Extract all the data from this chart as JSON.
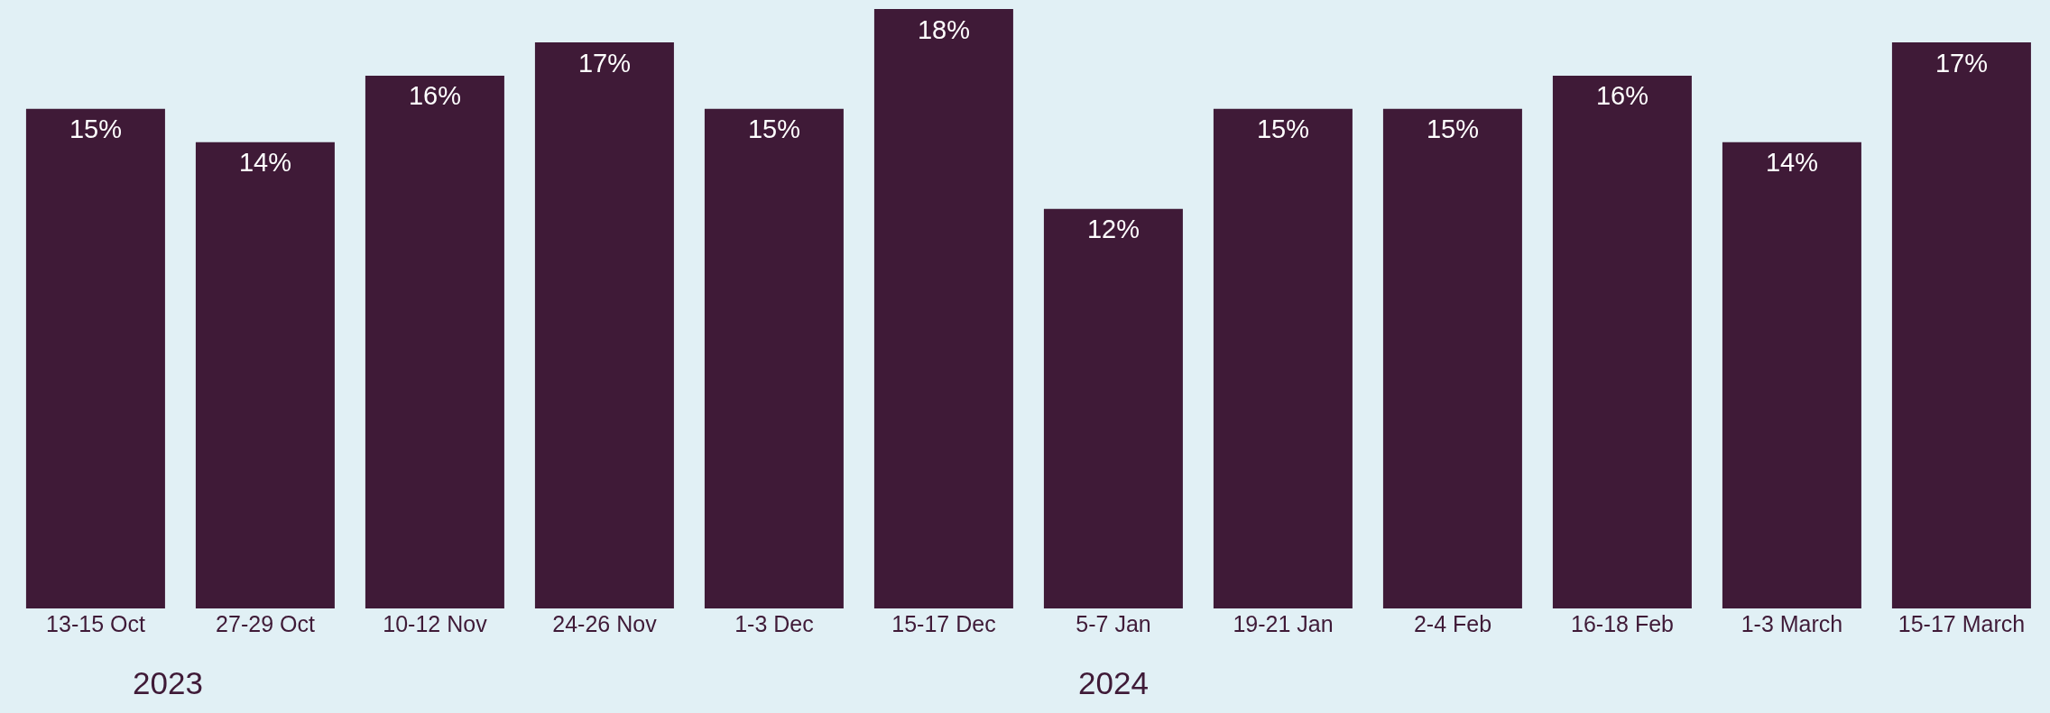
{
  "chart_data": {
    "type": "bar",
    "categories": [
      "13-15 Oct",
      "27-29 Oct",
      "10-12 Nov",
      "24-26 Nov",
      "1-3 Dec",
      "15-17 Dec",
      "5-7 Jan",
      "19-21 Jan",
      "2-4 Feb",
      "16-18 Feb",
      "1-3 March",
      "15-17 March"
    ],
    "values": [
      15,
      14,
      16,
      17,
      15,
      18,
      12,
      15,
      15,
      16,
      14,
      17
    ],
    "value_labels": [
      "15%",
      "14%",
      "16%",
      "17%",
      "15%",
      "18%",
      "12%",
      "15%",
      "15%",
      "16%",
      "14%",
      "17%"
    ],
    "color": "#3f1a37",
    "annotations": [
      "2023",
      "2024"
    ],
    "grid": false,
    "legend": false
  }
}
